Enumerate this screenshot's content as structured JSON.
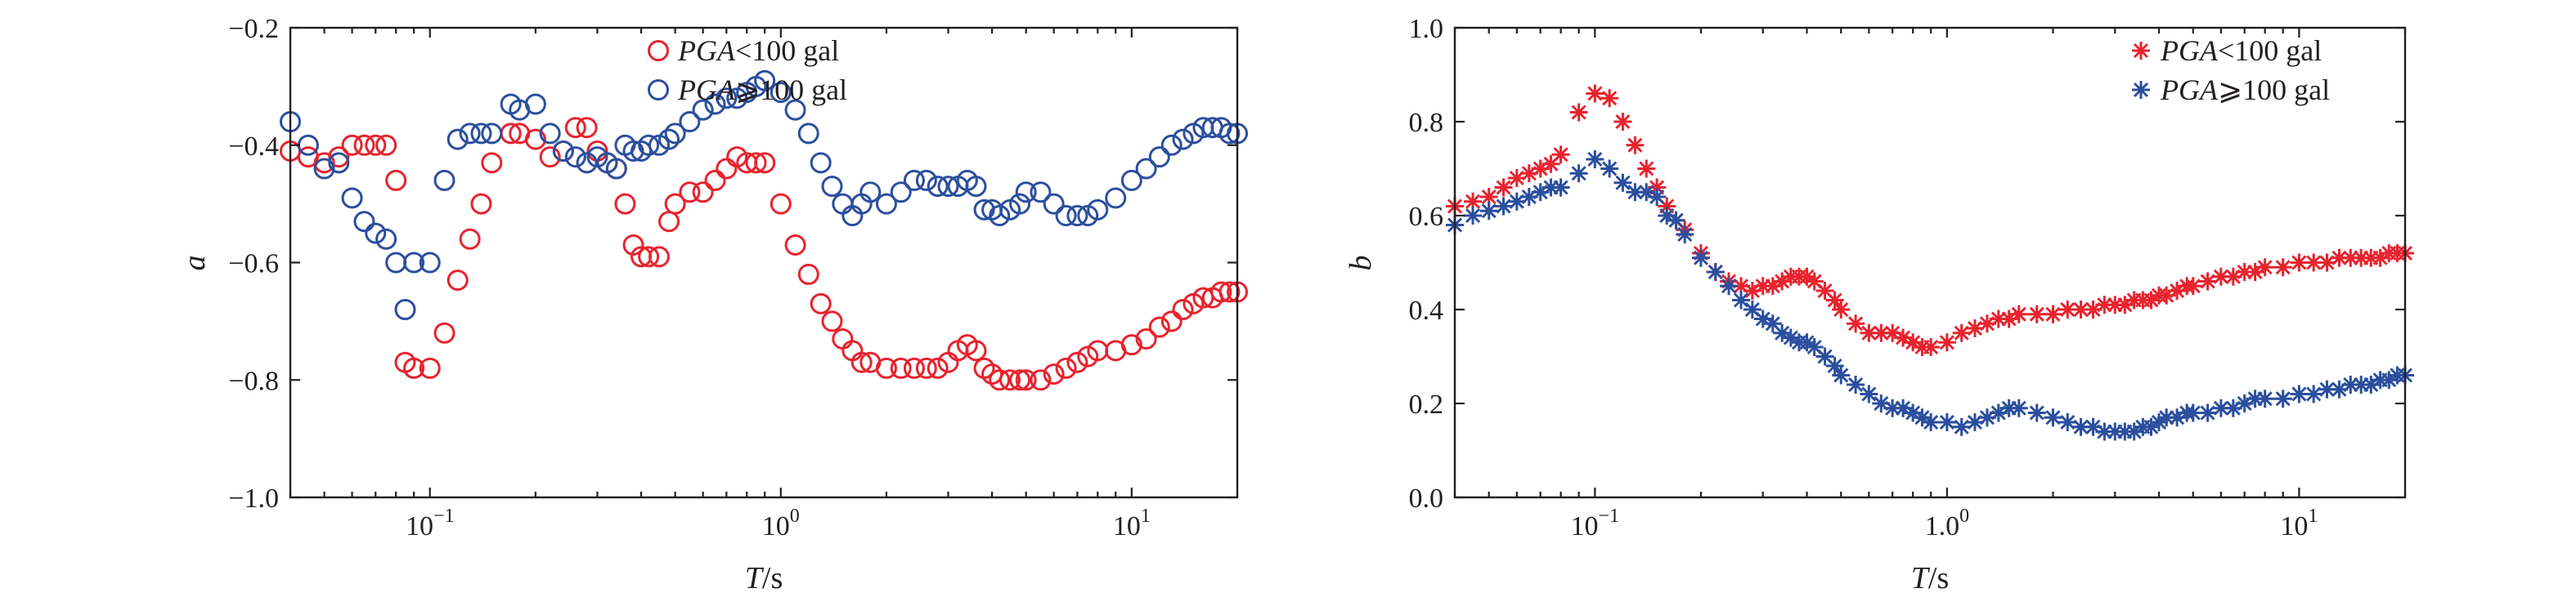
{
  "colors": {
    "red": "#e8232e",
    "blue": "#2b4f9e",
    "axis": "#231f20"
  },
  "chart_data": [
    {
      "type": "scatter",
      "xscale": "log",
      "xlim": [
        0.04,
        20
      ],
      "ylim": [
        -1.0,
        -0.2
      ],
      "ylabel": "a",
      "xlabel_var": "T",
      "xlabel_unit": "/s",
      "xtick_values": [
        0.1,
        1,
        10
      ],
      "xtick_bases": [
        "10",
        "10",
        "10"
      ],
      "xtick_exps": [
        "−1",
        "0",
        "1"
      ],
      "ytick_values": [
        -0.2,
        -0.4,
        -0.6,
        -0.8,
        -1.0
      ],
      "ytick_labels": [
        "−0.2",
        "−0.4",
        "−0.6",
        "−0.8",
        "−1.0"
      ],
      "legend_position": "top-right",
      "marker": "circle",
      "series": [
        {
          "legend_var": "PGA",
          "legend_cond": "<100 gal",
          "color": "#e8232e",
          "x": [
            0.04,
            0.045,
            0.05,
            0.055,
            0.06,
            0.065,
            0.07,
            0.075,
            0.08,
            0.085,
            0.09,
            0.1,
            0.11,
            0.12,
            0.13,
            0.14,
            0.15,
            0.17,
            0.18,
            0.2,
            0.22,
            0.24,
            0.26,
            0.28,
            0.3,
            0.32,
            0.34,
            0.36,
            0.38,
            0.4,
            0.42,
            0.45,
            0.48,
            0.5,
            0.55,
            0.6,
            0.65,
            0.7,
            0.75,
            0.8,
            0.85,
            0.9,
            1.0,
            1.1,
            1.2,
            1.3,
            1.4,
            1.5,
            1.6,
            1.7,
            1.8,
            2.0,
            2.2,
            2.4,
            2.6,
            2.8,
            3.0,
            3.2,
            3.4,
            3.6,
            3.8,
            4.0,
            4.2,
            4.5,
            4.8,
            5.0,
            5.5,
            6.0,
            6.5,
            7.0,
            7.5,
            8.0,
            9.0,
            10.0,
            11.0,
            12.0,
            13.0,
            14.0,
            15.0,
            16.0,
            17.0,
            18.0,
            19.0,
            20.0
          ],
          "y": [
            -0.41,
            -0.42,
            -0.43,
            -0.42,
            -0.4,
            -0.4,
            -0.4,
            -0.4,
            -0.46,
            -0.77,
            -0.78,
            -0.78,
            -0.72,
            -0.63,
            -0.56,
            -0.5,
            -0.43,
            -0.38,
            -0.38,
            -0.39,
            -0.42,
            -0.41,
            -0.37,
            -0.37,
            -0.41,
            -0.43,
            -0.44,
            -0.5,
            -0.57,
            -0.59,
            -0.59,
            -0.59,
            -0.53,
            -0.5,
            -0.48,
            -0.48,
            -0.46,
            -0.44,
            -0.42,
            -0.43,
            -0.43,
            -0.43,
            -0.5,
            -0.57,
            -0.62,
            -0.67,
            -0.7,
            -0.73,
            -0.75,
            -0.77,
            -0.77,
            -0.78,
            -0.78,
            -0.78,
            -0.78,
            -0.78,
            -0.77,
            -0.75,
            -0.74,
            -0.75,
            -0.78,
            -0.79,
            -0.8,
            -0.8,
            -0.8,
            -0.8,
            -0.8,
            -0.79,
            -0.78,
            -0.77,
            -0.76,
            -0.75,
            -0.75,
            -0.74,
            -0.73,
            -0.71,
            -0.7,
            -0.68,
            -0.67,
            -0.66,
            -0.66,
            -0.65,
            -0.65,
            -0.65
          ]
        },
        {
          "legend_var": "PGA",
          "legend_cond": "⩾100 gal",
          "color": "#2b4f9e",
          "x": [
            0.04,
            0.045,
            0.05,
            0.055,
            0.06,
            0.065,
            0.07,
            0.075,
            0.08,
            0.085,
            0.09,
            0.1,
            0.11,
            0.12,
            0.13,
            0.14,
            0.15,
            0.17,
            0.18,
            0.2,
            0.22,
            0.24,
            0.26,
            0.28,
            0.3,
            0.32,
            0.34,
            0.36,
            0.38,
            0.4,
            0.42,
            0.45,
            0.48,
            0.5,
            0.55,
            0.6,
            0.65,
            0.7,
            0.75,
            0.8,
            0.85,
            0.9,
            1.0,
            1.1,
            1.2,
            1.3,
            1.4,
            1.5,
            1.6,
            1.7,
            1.8,
            2.0,
            2.2,
            2.4,
            2.6,
            2.8,
            3.0,
            3.2,
            3.4,
            3.6,
            3.8,
            4.0,
            4.2,
            4.5,
            4.8,
            5.0,
            5.5,
            6.0,
            6.5,
            7.0,
            7.5,
            8.0,
            9.0,
            10.0,
            11.0,
            12.0,
            13.0,
            14.0,
            15.0,
            16.0,
            17.0,
            18.0,
            19.0,
            20.0
          ],
          "y": [
            -0.36,
            -0.4,
            -0.44,
            -0.43,
            -0.49,
            -0.53,
            -0.55,
            -0.56,
            -0.6,
            -0.68,
            -0.6,
            -0.6,
            -0.46,
            -0.39,
            -0.38,
            -0.38,
            -0.38,
            -0.33,
            -0.34,
            -0.33,
            -0.38,
            -0.41,
            -0.42,
            -0.43,
            -0.42,
            -0.43,
            -0.44,
            -0.4,
            -0.41,
            -0.41,
            -0.4,
            -0.4,
            -0.39,
            -0.38,
            -0.36,
            -0.34,
            -0.33,
            -0.32,
            -0.32,
            -0.31,
            -0.3,
            -0.29,
            -0.31,
            -0.34,
            -0.38,
            -0.43,
            -0.47,
            -0.5,
            -0.52,
            -0.5,
            -0.48,
            -0.5,
            -0.48,
            -0.46,
            -0.46,
            -0.47,
            -0.47,
            -0.47,
            -0.46,
            -0.47,
            -0.51,
            -0.51,
            -0.52,
            -0.51,
            -0.5,
            -0.48,
            -0.48,
            -0.5,
            -0.52,
            -0.52,
            -0.52,
            -0.51,
            -0.49,
            -0.46,
            -0.44,
            -0.42,
            -0.4,
            -0.39,
            -0.38,
            -0.37,
            -0.37,
            -0.37,
            -0.38,
            -0.38
          ]
        }
      ]
    },
    {
      "type": "scatter",
      "xscale": "log",
      "xlim": [
        0.04,
        20
      ],
      "ylim": [
        0.0,
        1.0
      ],
      "ylabel": "b",
      "xlabel_var": "T",
      "xlabel_unit": "/s",
      "xtick_values": [
        0.1,
        1,
        10
      ],
      "xtick_bases": [
        "10",
        "1.0",
        "10"
      ],
      "xtick_exps": [
        "−1",
        "0",
        "1"
      ],
      "ytick_values": [
        1.0,
        0.8,
        0.6,
        0.4,
        0.2,
        0.0
      ],
      "ytick_labels": [
        "1.0",
        "0.8",
        "0.6",
        "0.4",
        "0.2",
        "0.0"
      ],
      "legend_position": "top-right",
      "marker": "asterisk",
      "series": [
        {
          "legend_var": "PGA",
          "legend_cond": "<100 gal",
          "color": "#e8232e",
          "x": [
            0.04,
            0.045,
            0.05,
            0.055,
            0.06,
            0.065,
            0.07,
            0.075,
            0.08,
            0.09,
            0.1,
            0.11,
            0.12,
            0.13,
            0.14,
            0.15,
            0.16,
            0.17,
            0.18,
            0.2,
            0.22,
            0.24,
            0.26,
            0.28,
            0.3,
            0.32,
            0.34,
            0.36,
            0.38,
            0.4,
            0.42,
            0.45,
            0.48,
            0.5,
            0.55,
            0.6,
            0.65,
            0.7,
            0.75,
            0.8,
            0.85,
            0.9,
            1.0,
            1.1,
            1.2,
            1.3,
            1.4,
            1.5,
            1.6,
            1.8,
            2.0,
            2.2,
            2.4,
            2.6,
            2.8,
            3.0,
            3.2,
            3.4,
            3.6,
            3.8,
            4.0,
            4.2,
            4.5,
            4.8,
            5.0,
            5.5,
            6.0,
            6.5,
            7.0,
            7.5,
            8.0,
            9.0,
            10.0,
            11.0,
            12.0,
            13.0,
            14.0,
            15.0,
            16.0,
            17.0,
            18.0,
            19.0,
            20.0
          ],
          "y": [
            0.62,
            0.63,
            0.64,
            0.66,
            0.68,
            0.69,
            0.7,
            0.71,
            0.73,
            0.82,
            0.86,
            0.85,
            0.8,
            0.75,
            0.7,
            0.66,
            0.62,
            0.59,
            0.57,
            0.52,
            0.48,
            0.46,
            0.45,
            0.44,
            0.45,
            0.45,
            0.46,
            0.47,
            0.47,
            0.47,
            0.46,
            0.44,
            0.42,
            0.4,
            0.37,
            0.35,
            0.35,
            0.35,
            0.34,
            0.33,
            0.32,
            0.32,
            0.33,
            0.35,
            0.36,
            0.37,
            0.38,
            0.38,
            0.39,
            0.39,
            0.39,
            0.4,
            0.4,
            0.4,
            0.41,
            0.41,
            0.41,
            0.42,
            0.42,
            0.42,
            0.43,
            0.43,
            0.44,
            0.45,
            0.45,
            0.46,
            0.47,
            0.47,
            0.48,
            0.48,
            0.49,
            0.49,
            0.5,
            0.5,
            0.5,
            0.51,
            0.51,
            0.51,
            0.51,
            0.51,
            0.52,
            0.52,
            0.52
          ]
        },
        {
          "legend_var": "PGA",
          "legend_cond": "⩾100 gal",
          "color": "#2b4f9e",
          "x": [
            0.04,
            0.045,
            0.05,
            0.055,
            0.06,
            0.065,
            0.07,
            0.075,
            0.08,
            0.09,
            0.1,
            0.11,
            0.12,
            0.13,
            0.14,
            0.15,
            0.16,
            0.17,
            0.18,
            0.2,
            0.22,
            0.24,
            0.26,
            0.28,
            0.3,
            0.32,
            0.34,
            0.36,
            0.38,
            0.4,
            0.42,
            0.45,
            0.48,
            0.5,
            0.55,
            0.6,
            0.65,
            0.7,
            0.75,
            0.8,
            0.85,
            0.9,
            1.0,
            1.1,
            1.2,
            1.3,
            1.4,
            1.5,
            1.6,
            1.8,
            2.0,
            2.2,
            2.4,
            2.6,
            2.8,
            3.0,
            3.2,
            3.4,
            3.6,
            3.8,
            4.0,
            4.2,
            4.5,
            4.8,
            5.0,
            5.5,
            6.0,
            6.5,
            7.0,
            7.5,
            8.0,
            9.0,
            10.0,
            11.0,
            12.0,
            13.0,
            14.0,
            15.0,
            16.0,
            17.0,
            18.0,
            19.0,
            20.0
          ],
          "y": [
            0.58,
            0.6,
            0.61,
            0.62,
            0.63,
            0.64,
            0.65,
            0.66,
            0.66,
            0.69,
            0.72,
            0.7,
            0.67,
            0.65,
            0.65,
            0.64,
            0.6,
            0.59,
            0.56,
            0.51,
            0.48,
            0.45,
            0.42,
            0.4,
            0.38,
            0.37,
            0.35,
            0.34,
            0.33,
            0.33,
            0.32,
            0.3,
            0.28,
            0.26,
            0.24,
            0.22,
            0.2,
            0.19,
            0.19,
            0.18,
            0.17,
            0.16,
            0.16,
            0.15,
            0.16,
            0.17,
            0.18,
            0.19,
            0.19,
            0.18,
            0.17,
            0.16,
            0.15,
            0.15,
            0.14,
            0.14,
            0.14,
            0.14,
            0.15,
            0.15,
            0.16,
            0.17,
            0.17,
            0.18,
            0.18,
            0.18,
            0.19,
            0.19,
            0.2,
            0.21,
            0.21,
            0.21,
            0.22,
            0.22,
            0.23,
            0.23,
            0.24,
            0.24,
            0.24,
            0.25,
            0.25,
            0.26,
            0.26
          ]
        }
      ]
    }
  ]
}
